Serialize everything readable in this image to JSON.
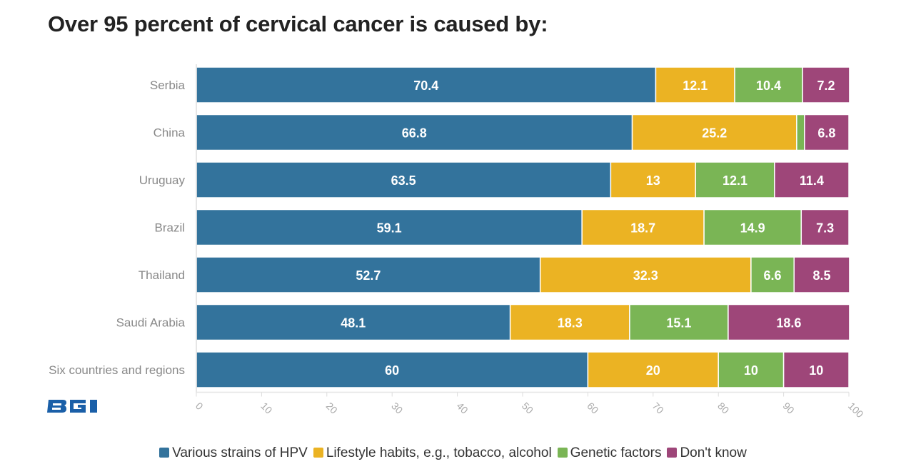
{
  "title": "Over 95 percent of cervical cancer is caused by:",
  "logo_text": "BGI",
  "chart_data": {
    "type": "bar",
    "orientation": "horizontal",
    "stacked": true,
    "categories": [
      "Serbia",
      "China",
      "Uruguay",
      "Brazil",
      "Thailand",
      "Saudi Arabia",
      "Six countries and regions"
    ],
    "series": [
      {
        "name": "Various strains of HPV",
        "color": "#33739c",
        "values": [
          70.4,
          66.8,
          63.5,
          59.1,
          52.7,
          48.1,
          60
        ]
      },
      {
        "name": "Lifestyle habits, e.g., tobacco, alcohol",
        "color": "#ebb323",
        "values": [
          12.1,
          25.2,
          13,
          18.7,
          32.3,
          18.3,
          20
        ]
      },
      {
        "name": "Genetic factors",
        "color": "#7ab555",
        "values": [
          10.4,
          1.2,
          12.1,
          14.9,
          6.6,
          15.1,
          10
        ]
      },
      {
        "name": "Don't know",
        "color": "#9e4679",
        "values": [
          7.2,
          6.8,
          11.4,
          7.3,
          8.5,
          18.6,
          10
        ]
      }
    ],
    "hidden_labels": [
      [
        1,
        2
      ]
    ],
    "xlim": [
      0,
      100
    ],
    "xticks": [
      0,
      10,
      20,
      30,
      40,
      50,
      60,
      70,
      80,
      90,
      100
    ],
    "legend": "bottom",
    "grid": false
  }
}
